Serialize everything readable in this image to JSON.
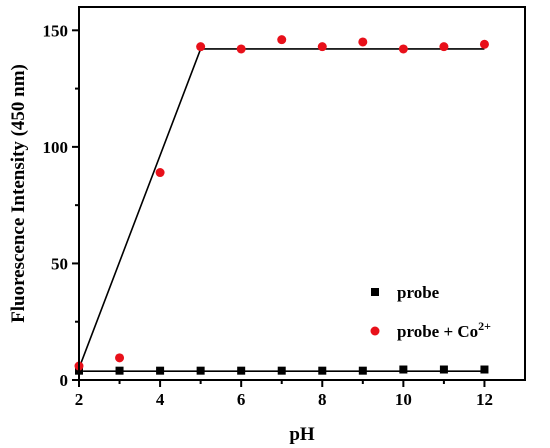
{
  "chart_data": {
    "type": "scatter",
    "xlabel": "pH",
    "ylabel": "Fluorescence Intensity (450 nm)",
    "xlim": [
      2,
      13
    ],
    "ylim": [
      0,
      160
    ],
    "x_ticks": [
      2,
      4,
      6,
      8,
      10,
      12
    ],
    "y_ticks": [
      0,
      50,
      100,
      150
    ],
    "grid": false,
    "legend_position": "bottom-right",
    "x": [
      2,
      3,
      4,
      5,
      6,
      7,
      8,
      9,
      10,
      11,
      12
    ],
    "series": [
      {
        "name": "probe",
        "marker": "square",
        "color": "#000000",
        "values": [
          4,
          4,
          4,
          4,
          4,
          4,
          4,
          4,
          4.5,
          4.5,
          4.5
        ]
      },
      {
        "name": "probe + Co",
        "name_superscript": "2+",
        "marker": "circle",
        "color": "#e8101a",
        "values": [
          6,
          9.5,
          89,
          143,
          142,
          146,
          143,
          145,
          142,
          143,
          144
        ]
      }
    ],
    "fit_lines": [
      {
        "series": "probe",
        "points": [
          [
            2.1,
            3.8
          ],
          [
            12,
            3.8
          ]
        ]
      },
      {
        "series": "probe + Co",
        "points": [
          [
            2,
            5
          ],
          [
            5,
            142
          ],
          [
            12,
            142
          ]
        ]
      }
    ]
  }
}
